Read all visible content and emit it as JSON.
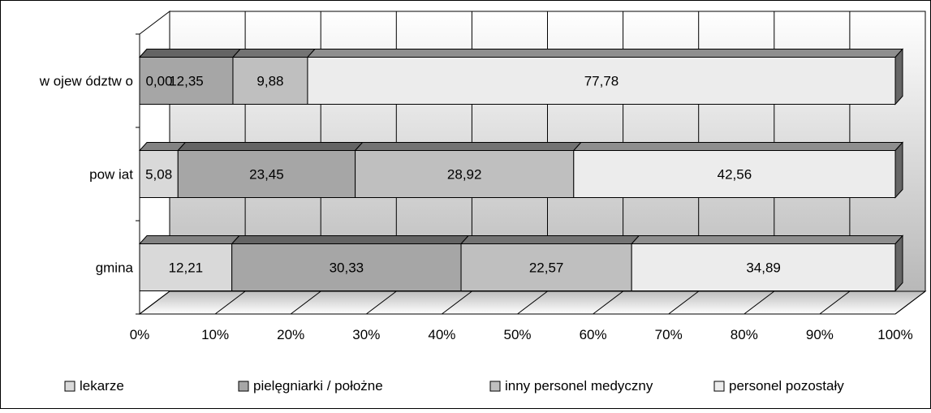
{
  "chart_data": {
    "type": "bar",
    "orientation": "horizontal",
    "stacked": "percent",
    "three_d": true,
    "categories": [
      "w ojew ództw o",
      "pow iat",
      "gmina"
    ],
    "series": [
      {
        "name": "lekarze",
        "values": [
          0.0,
          5.08,
          12.21
        ],
        "color": "#d9d9d9"
      },
      {
        "name": "pielęgniarki / położne",
        "values": [
          12.35,
          23.45,
          30.33
        ],
        "color": "#a6a6a6"
      },
      {
        "name": "inny personel medyczny",
        "values": [
          9.88,
          28.92,
          22.57
        ],
        "color": "#bfbfbf"
      },
      {
        "name": "personel pozostały",
        "values": [
          77.78,
          42.56,
          34.89
        ],
        "color": "#ececec"
      }
    ],
    "data_labels": [
      [
        "0,00",
        "12,35",
        "9,88",
        "77,78"
      ],
      [
        "5,08",
        "23,45",
        "28,92",
        "42,56"
      ],
      [
        "12,21",
        "30,33",
        "22,57",
        "34,89"
      ]
    ],
    "x_ticks": [
      "0%",
      "10%",
      "20%",
      "30%",
      "40%",
      "50%",
      "60%",
      "70%",
      "80%",
      "90%",
      "100%"
    ],
    "xlim": [
      0,
      100
    ],
    "grid": true,
    "legend": "bottom",
    "title": "",
    "xlabel": "",
    "ylabel": ""
  }
}
